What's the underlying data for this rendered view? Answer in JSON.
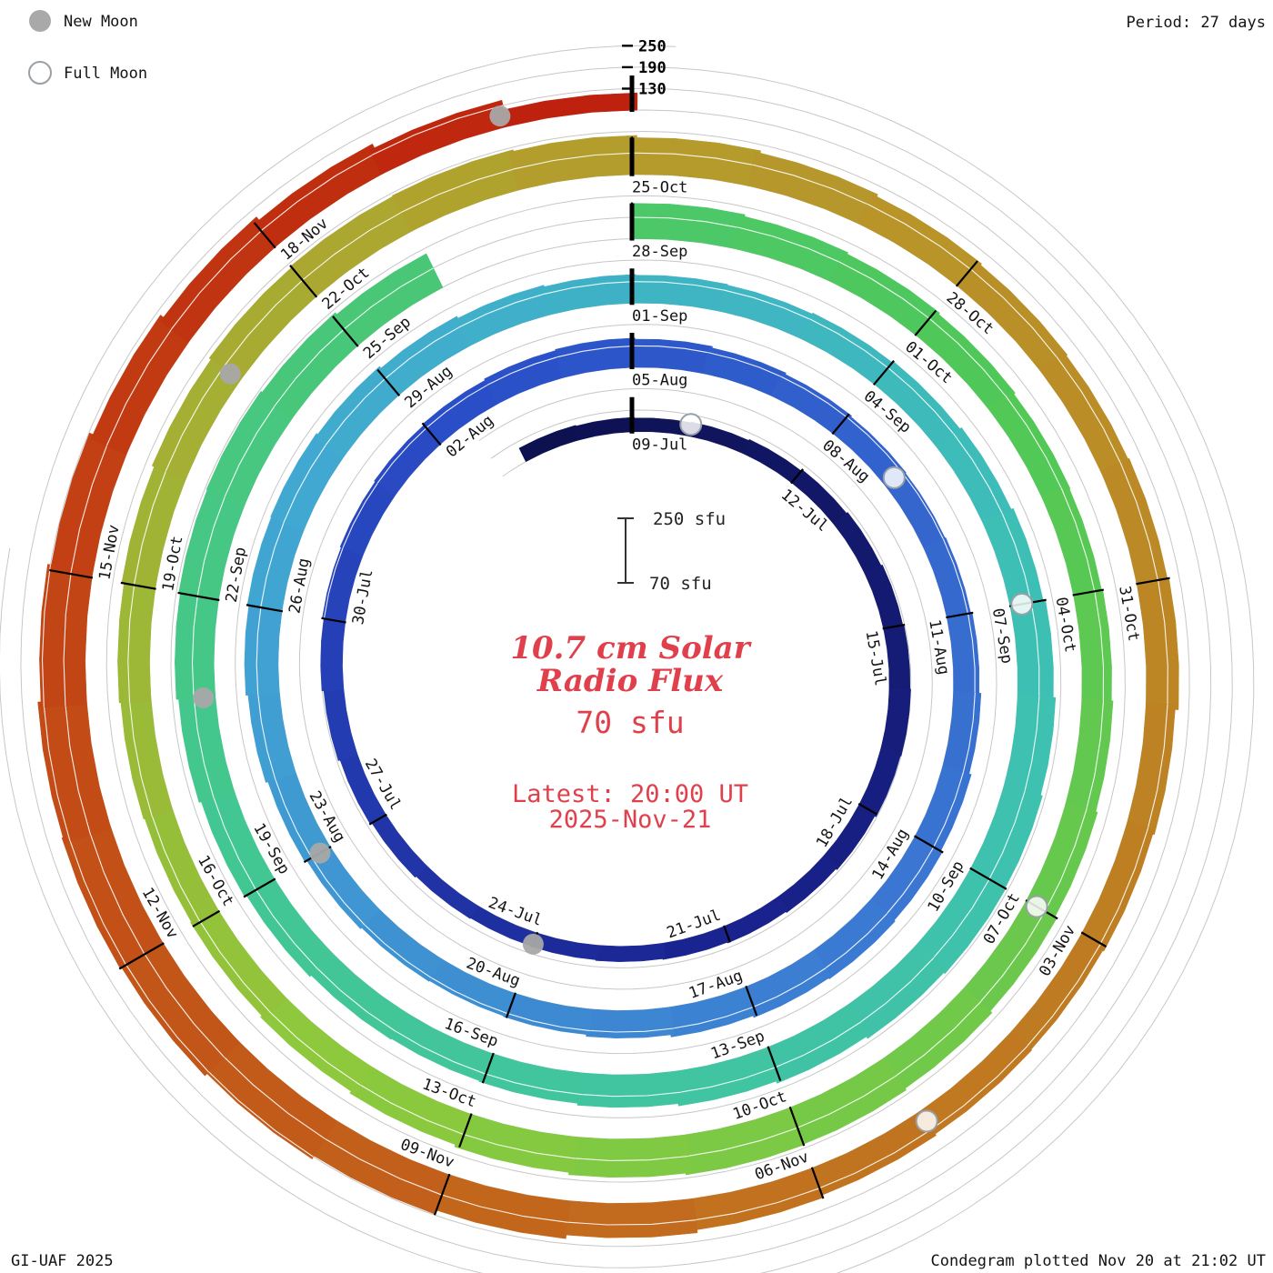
{
  "header": {
    "period_label": "Period: 27 days"
  },
  "legend": {
    "new_moon_label": "New Moon",
    "full_moon_label": "Full Moon"
  },
  "center": {
    "title_line1": "10.7 cm Solar",
    "title_line2": "Radio Flux",
    "current_value": "70 sfu",
    "latest_line1": "Latest: 20:00 UT",
    "latest_line2": "2025-Nov-21"
  },
  "scale_bar": {
    "top_label": "250 sfu",
    "bottom_label": "70 sfu"
  },
  "footer": {
    "left": "GI-UAF 2025",
    "right": "Condegram plotted Nov 20 at 21:02 UT"
  },
  "chart_data": {
    "type": "spiral-bar",
    "title": "10.7 cm Solar Radio Flux",
    "units": "sfu",
    "period_days": 27,
    "start_date": "2025-07-07",
    "end_date": "2025-11-21",
    "latest_value_sfu": 70,
    "flux_axis": {
      "min": 70,
      "max": 250,
      "ticks": [
        130,
        190,
        250
      ]
    },
    "label_start_day_index": 2,
    "label_step_days": 3,
    "date_labels": [
      "09-Jul",
      "12-Jul",
      "15-Jul",
      "18-Jul",
      "21-Jul",
      "24-Jul",
      "27-Jul",
      "30-Jul",
      "02-Aug",
      "05-Aug",
      "08-Aug",
      "11-Aug",
      "14-Aug",
      "17-Aug",
      "20-Aug",
      "23-Aug",
      "26-Aug",
      "29-Aug",
      "01-Sep",
      "04-Sep",
      "07-Sep",
      "10-Sep",
      "13-Sep",
      "16-Sep",
      "19-Sep",
      "22-Sep",
      "25-Sep",
      "28-Sep",
      "01-Oct",
      "04-Oct",
      "07-Oct",
      "10-Oct",
      "13-Oct",
      "16-Oct",
      "19-Oct",
      "22-Oct",
      "25-Oct",
      "28-Oct",
      "31-Oct",
      "03-Nov",
      "06-Nov",
      "09-Nov",
      "12-Nov",
      "15-Nov",
      "18-Nov"
    ],
    "daily_flux": [
      112,
      110,
      108,
      110,
      113,
      117,
      121,
      125,
      128,
      130,
      128,
      124,
      120,
      117,
      115,
      113,
      111,
      110,
      112,
      116,
      121,
      126,
      131,
      135,
      138,
      141,
      145,
      149,
      152,
      149,
      145,
      141,
      138,
      136,
      138,
      142,
      147,
      153,
      158,
      161,
      158,
      153,
      147,
      142,
      140,
      142,
      146,
      152,
      158,
      164,
      168,
      170,
      166,
      160,
      154,
      150,
      148,
      146,
      149,
      153,
      158,
      164,
      170,
      176,
      181,
      183,
      179,
      173,
      167,
      161,
      156,
      154,
      156,
      161,
      167,
      173,
      179,
      183,
      185,
      181,
      175,
      null,
      null,
      169,
      164,
      160,
      156,
      152,
      150,
      153,
      157,
      162,
      168,
      174,
      179,
      181,
      177,
      171,
      165,
      159,
      154,
      152,
      155,
      159,
      165,
      171,
      177,
      181,
      183,
      179,
      173,
      167,
      161,
      157,
      154,
      157,
      161,
      152,
      148,
      145,
      147,
      151,
      158,
      166,
      176,
      187,
      197,
      205,
      209,
      206,
      198,
      188,
      178,
      168,
      157,
      145,
      118,
      70
    ],
    "gap_dates": [
      "2025-09-26",
      "2025-09-27"
    ],
    "moons": [
      {
        "day_index": 3,
        "type": "full"
      },
      {
        "day_index": 17,
        "type": "new"
      },
      {
        "day_index": 33,
        "type": "full"
      },
      {
        "day_index": 47,
        "type": "new"
      },
      {
        "day_index": 62,
        "type": "full"
      },
      {
        "day_index": 76,
        "type": "new"
      },
      {
        "day_index": 92,
        "type": "full"
      },
      {
        "day_index": 106,
        "type": "new"
      },
      {
        "day_index": 121,
        "type": "full"
      },
      {
        "day_index": 136,
        "type": "new"
      }
    ],
    "colormap": [
      [
        0.0,
        "#0d1150"
      ],
      [
        0.1,
        "#1a2390"
      ],
      [
        0.19,
        "#2a4ec8"
      ],
      [
        0.28,
        "#3b78d2"
      ],
      [
        0.37,
        "#41a8d2"
      ],
      [
        0.45,
        "#3dc0b4"
      ],
      [
        0.54,
        "#43c792"
      ],
      [
        0.63,
        "#4fc858"
      ],
      [
        0.72,
        "#8dc93d"
      ],
      [
        0.8,
        "#b59c2c"
      ],
      [
        0.89,
        "#c2711f"
      ],
      [
        0.96,
        "#c23d13"
      ],
      [
        1.0,
        "#bd1b0c"
      ]
    ],
    "colors": {
      "accent_red": "#e0404c",
      "gridline": "#c7c7c7",
      "moon_gray": "#a8a8a8"
    }
  }
}
